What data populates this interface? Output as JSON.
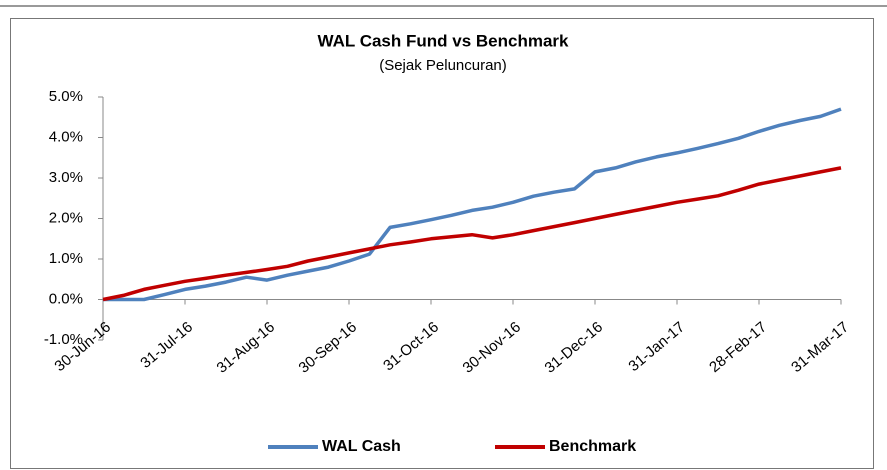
{
  "chart_data": {
    "type": "line",
    "title": "WAL Cash Fund  vs Benchmark",
    "subtitle": "(Sejak Peluncuran)",
    "categories": [
      "30-Jun-16",
      null,
      null,
      null,
      "31-Jul-16",
      null,
      null,
      null,
      "31-Aug-16",
      null,
      null,
      null,
      "30-Sep-16",
      null,
      null,
      null,
      "31-Oct-16",
      null,
      null,
      null,
      "30-Nov-16",
      null,
      null,
      null,
      "31-Dec-16",
      null,
      null,
      null,
      "31-Jan-17",
      null,
      null,
      null,
      "28-Feb-17",
      null,
      null,
      null,
      "31-Mar-17"
    ],
    "series": [
      {
        "name": "WAL Cash",
        "color": "#4f81bd",
        "values": [
          0,
          0,
          0,
          0.12,
          0.25,
          0.33,
          0.43,
          0.55,
          0.48,
          0.6,
          0.7,
          0.8,
          0.95,
          1.12,
          1.78,
          1.87,
          1.97,
          2.08,
          2.2,
          2.28,
          2.4,
          2.55,
          2.65,
          2.73,
          3.15,
          3.25,
          3.4,
          3.52,
          3.62,
          3.73,
          3.85,
          3.98,
          4.15,
          4.3,
          4.42,
          4.52,
          4.7
        ]
      },
      {
        "name": "Benchmark",
        "color": "#c00000",
        "values": [
          0,
          0.1,
          0.25,
          0.35,
          0.45,
          0.52,
          0.6,
          0.67,
          0.74,
          0.82,
          0.95,
          1.05,
          1.15,
          1.25,
          1.35,
          1.42,
          1.5,
          1.55,
          1.6,
          1.52,
          1.6,
          1.7,
          1.8,
          1.9,
          2.0,
          2.1,
          2.2,
          2.3,
          2.4,
          2.48,
          2.56,
          2.7,
          2.85,
          2.95,
          3.05,
          3.15,
          3.25
        ]
      }
    ],
    "ylim": [
      -1,
      5
    ],
    "yticks": [
      {
        "value": -1,
        "label": "-1.0%"
      },
      {
        "value": 0,
        "label": "0.0%"
      },
      {
        "value": 1,
        "label": "1.0%"
      },
      {
        "value": 2,
        "label": "2.0%"
      },
      {
        "value": 3,
        "label": "3.0%"
      },
      {
        "value": 4,
        "label": "4.0%"
      },
      {
        "value": 5,
        "label": "5.0%"
      }
    ],
    "grid": false,
    "legend": "bottom"
  }
}
